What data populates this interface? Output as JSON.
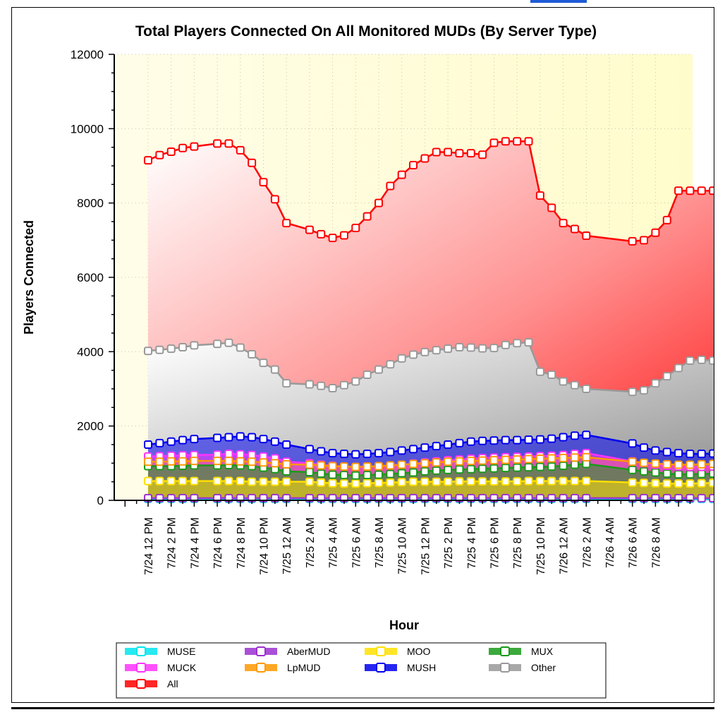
{
  "chart_data": {
    "type": "area",
    "title": "Total Players Connected On All Monitored MUDs (By Server Type)",
    "xlabel": "Hour",
    "ylabel": "Players Connected",
    "ylim": [
      0,
      12000
    ],
    "yticks": [
      "0",
      "2000",
      "4000",
      "6000",
      "8000",
      "10000",
      "12000"
    ],
    "x_tick_labels": [
      "7/24 12 PM",
      "7/24 2 PM",
      "7/24 4 PM",
      "7/24 6 PM",
      "7/24 8 PM",
      "7/24 10 PM",
      "7/25 12 AM",
      "7/25 2 AM",
      "7/25 4 AM",
      "7/25 6 AM",
      "7/25 8 AM",
      "7/25 10 AM",
      "7/25 12 PM",
      "7/25 2 PM",
      "7/25 4 PM",
      "7/25 6 PM",
      "7/25 8 PM",
      "7/25 10 PM",
      "7/26 12 AM",
      "7/26 2 AM",
      "7/26 4 AM",
      "7/26 6 AM",
      "7/26 8 AM"
    ],
    "x_hours_from_first_tick": [
      0,
      1,
      2,
      3,
      4,
      6,
      7,
      8,
      9,
      10,
      11,
      12,
      14,
      15,
      16,
      17,
      18,
      19,
      20,
      21,
      22,
      23,
      24,
      25,
      26,
      27,
      28,
      29,
      30,
      31,
      32,
      33,
      34,
      35,
      36,
      37,
      38,
      42,
      43,
      44,
      45,
      46,
      47,
      48,
      49,
      50,
      51
    ],
    "grid": true,
    "legend_position": "bottom",
    "series": [
      {
        "name": "MUSE",
        "color": "#00e5ee",
        "values": [
          40,
          40,
          40,
          40,
          40,
          40,
          40,
          40,
          40,
          40,
          40,
          40,
          40,
          40,
          40,
          40,
          40,
          40,
          40,
          40,
          40,
          40,
          40,
          40,
          40,
          40,
          40,
          40,
          40,
          40,
          40,
          40,
          40,
          40,
          40,
          40,
          40,
          40,
          40,
          40,
          40,
          40,
          40,
          40,
          40,
          40,
          40
        ]
      },
      {
        "name": "AberMUD",
        "color": "#9b30d0",
        "values": [
          60,
          60,
          60,
          60,
          60,
          60,
          60,
          60,
          60,
          60,
          60,
          60,
          60,
          60,
          60,
          60,
          60,
          60,
          60,
          60,
          60,
          60,
          60,
          60,
          60,
          60,
          60,
          60,
          60,
          60,
          60,
          60,
          60,
          60,
          60,
          60,
          60,
          60,
          60,
          60,
          60,
          60,
          60,
          60,
          60,
          60,
          60
        ]
      },
      {
        "name": "MOO",
        "color": "#ffe000",
        "values": [
          520,
          520,
          520,
          520,
          520,
          520,
          520,
          520,
          500,
          500,
          500,
          500,
          500,
          480,
          460,
          450,
          450,
          460,
          470,
          480,
          490,
          500,
          500,
          500,
          500,
          510,
          510,
          510,
          510,
          510,
          510,
          520,
          520,
          520,
          520,
          520,
          520,
          480,
          470,
          460,
          450,
          450,
          450,
          460,
          470,
          480,
          490
        ]
      },
      {
        "name": "MUX",
        "color": "#1a9a1a",
        "values": [
          920,
          920,
          920,
          930,
          940,
          940,
          950,
          940,
          920,
          880,
          840,
          780,
          760,
          720,
          690,
          680,
          670,
          680,
          690,
          710,
          730,
          750,
          780,
          800,
          820,
          830,
          840,
          850,
          860,
          870,
          880,
          890,
          900,
          910,
          930,
          960,
          980,
          820,
          780,
          750,
          720,
          700,
          700,
          710,
          720,
          740,
          760
        ]
      },
      {
        "name": "MUCK",
        "color": "#ff33ff",
        "values": [
          1180,
          1190,
          1200,
          1210,
          1220,
          1230,
          1250,
          1240,
          1220,
          1180,
          1130,
          1040,
          1000,
          960,
          930,
          910,
          900,
          910,
          920,
          940,
          960,
          990,
          1020,
          1050,
          1080,
          1100,
          1120,
          1140,
          1150,
          1160,
          1170,
          1180,
          1190,
          1200,
          1220,
          1250,
          1270,
          1050,
          1000,
          960,
          930,
          910,
          900,
          900,
          910,
          930,
          950
        ]
      },
      {
        "name": "LpMUD",
        "color": "#ff9900",
        "values": [
          1040,
          1040,
          1050,
          1050,
          1060,
          1060,
          1060,
          1050,
          1040,
          1020,
          1000,
          970,
          960,
          940,
          920,
          910,
          900,
          910,
          920,
          940,
          960,
          980,
          1000,
          1020,
          1040,
          1050,
          1060,
          1070,
          1080,
          1090,
          1100,
          1110,
          1120,
          1130,
          1140,
          1150,
          1160,
          1040,
          1010,
          990,
          970,
          960,
          960,
          970,
          980,
          1000,
          1020
        ]
      },
      {
        "name": "MUSH",
        "color": "#0000ee",
        "values": [
          1500,
          1540,
          1580,
          1620,
          1650,
          1680,
          1700,
          1720,
          1700,
          1650,
          1580,
          1500,
          1380,
          1320,
          1270,
          1250,
          1240,
          1250,
          1270,
          1300,
          1340,
          1380,
          1420,
          1460,
          1500,
          1540,
          1580,
          1600,
          1610,
          1620,
          1620,
          1630,
          1640,
          1660,
          1700,
          1740,
          1760,
          1530,
          1420,
          1340,
          1300,
          1270,
          1250,
          1250,
          1260,
          1280,
          1390
        ]
      },
      {
        "name": "Other",
        "color": "#999999",
        "values": [
          4020,
          4050,
          4080,
          4120,
          4170,
          4210,
          4240,
          4110,
          3930,
          3700,
          3520,
          3150,
          3120,
          3080,
          3020,
          3100,
          3200,
          3380,
          3520,
          3660,
          3820,
          3920,
          3990,
          4040,
          4080,
          4120,
          4110,
          4090,
          4100,
          4180,
          4230,
          4250,
          3460,
          3380,
          3200,
          3100,
          3000,
          2920,
          2960,
          3150,
          3340,
          3560,
          3760,
          3780,
          3760,
          3760,
          3770
        ]
      },
      {
        "name": "All",
        "color": "#ff0000",
        "values": [
          9150,
          9290,
          9380,
          9480,
          9520,
          9600,
          9600,
          9420,
          9080,
          8560,
          8100,
          7460,
          7280,
          7160,
          7060,
          7130,
          7330,
          7640,
          8000,
          8460,
          8760,
          9020,
          9200,
          9370,
          9370,
          9340,
          9340,
          9300,
          9620,
          9660,
          9660,
          9660,
          8200,
          7870,
          7460,
          7300,
          7120,
          6970,
          7000,
          7200,
          7540,
          8330,
          8330,
          8330,
          8330,
          8330,
          8330
        ]
      }
    ]
  }
}
